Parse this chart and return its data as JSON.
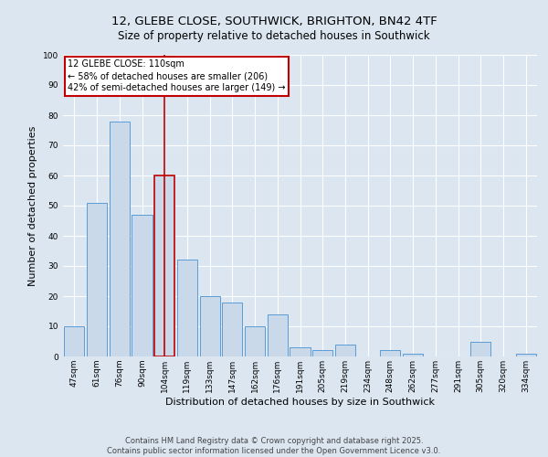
{
  "title_line1": "12, GLEBE CLOSE, SOUTHWICK, BRIGHTON, BN42 4TF",
  "title_line2": "Size of property relative to detached houses in Southwick",
  "xlabel": "Distribution of detached houses by size in Southwick",
  "ylabel": "Number of detached properties",
  "categories": [
    "47sqm",
    "61sqm",
    "76sqm",
    "90sqm",
    "104sqm",
    "119sqm",
    "133sqm",
    "147sqm",
    "162sqm",
    "176sqm",
    "191sqm",
    "205sqm",
    "219sqm",
    "234sqm",
    "248sqm",
    "262sqm",
    "277sqm",
    "291sqm",
    "305sqm",
    "320sqm",
    "334sqm"
  ],
  "values": [
    10,
    51,
    78,
    47,
    60,
    32,
    20,
    18,
    10,
    14,
    3,
    2,
    4,
    0,
    2,
    1,
    0,
    0,
    5,
    0,
    1
  ],
  "bar_color": "#c9d9ea",
  "bar_edge_color": "#5b9bd5",
  "highlight_index": 4,
  "vline_color": "#c00000",
  "annotation_text": "12 GLEBE CLOSE: 110sqm\n← 58% of detached houses are smaller (206)\n42% of semi-detached houses are larger (149) →",
  "annotation_box_color": "#ffffff",
  "annotation_box_edge": "#c00000",
  "ylim": [
    0,
    100
  ],
  "yticks": [
    0,
    10,
    20,
    30,
    40,
    50,
    60,
    70,
    80,
    90,
    100
  ],
  "background_color": "#dce6f1",
  "plot_bg_color": "#dce6f1",
  "footer_text": "Contains HM Land Registry data © Crown copyright and database right 2025.\nContains public sector information licensed under the Open Government Licence v3.0.",
  "title_fontsize": 9.5,
  "subtitle_fontsize": 8.5,
  "tick_fontsize": 6.5,
  "label_fontsize": 8,
  "annot_fontsize": 7,
  "footer_fontsize": 6
}
